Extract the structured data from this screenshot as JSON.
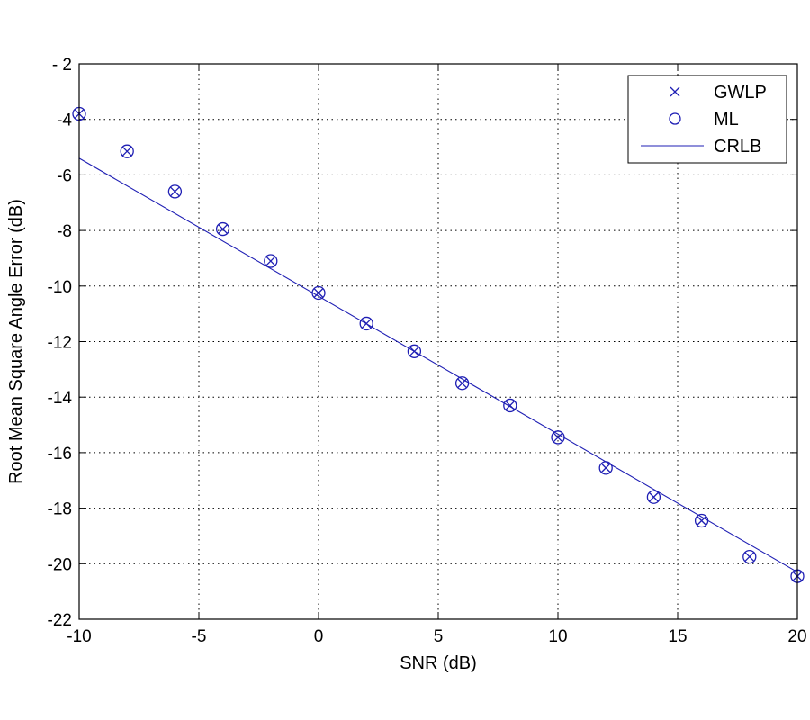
{
  "chart_data": {
    "type": "line",
    "xlabel": "SNR (dB)",
    "ylabel": "Root Mean Square Angle Error (dB)",
    "xlim": [
      -10,
      20
    ],
    "ylim": [
      -22,
      -2
    ],
    "xticks": [
      -10,
      -5,
      0,
      5,
      10,
      15,
      20
    ],
    "yticks": [
      -22,
      -20,
      -18,
      -16,
      -14,
      -12,
      -10,
      -8,
      -6,
      -4,
      -2
    ],
    "xtick_labels": [
      "-10",
      "-5",
      "0",
      "5",
      "10",
      "15",
      "20"
    ],
    "ytick_labels": [
      "-22",
      "-20",
      "-18",
      "-16",
      "-14",
      "-12",
      "-10",
      "-8",
      "-6",
      "-4",
      "- 2"
    ],
    "grid": true,
    "legend_position": "top-right",
    "colors": {
      "series": "#1f1fb4",
      "axis": "#000000",
      "background": "#ffffff"
    },
    "series": [
      {
        "name": "GWLP",
        "marker": "x",
        "x": [
          -10,
          -8,
          -6,
          -4,
          -2,
          0,
          2,
          4,
          6,
          8,
          10,
          12,
          14,
          16,
          18,
          20
        ],
        "y": [
          -3.8,
          -5.15,
          -6.6,
          -7.95,
          -9.1,
          -10.25,
          -11.35,
          -12.35,
          -13.5,
          -14.3,
          -15.45,
          -16.55,
          -17.6,
          -18.45,
          -19.75,
          -20.45
        ]
      },
      {
        "name": "ML",
        "marker": "o",
        "x": [
          -10,
          -8,
          -6,
          -4,
          -2,
          0,
          2,
          4,
          6,
          8,
          10,
          12,
          14,
          16,
          18,
          20
        ],
        "y": [
          -3.8,
          -5.15,
          -6.6,
          -7.95,
          -9.1,
          -10.25,
          -11.35,
          -12.35,
          -13.5,
          -14.3,
          -15.45,
          -16.55,
          -17.6,
          -18.45,
          -19.75,
          -20.45
        ]
      },
      {
        "name": "CRLB",
        "marker": "line",
        "x": [
          -10,
          20
        ],
        "y": [
          -5.4,
          -20.3
        ]
      }
    ]
  }
}
